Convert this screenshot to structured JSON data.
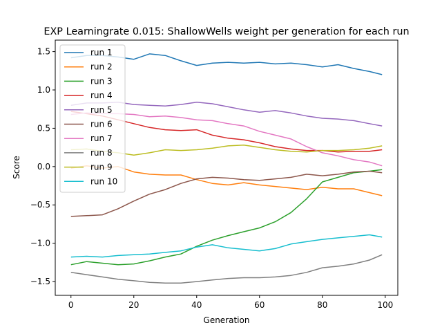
{
  "chart_data": {
    "type": "line",
    "title": "EXP Learningrate 0.015: ShallowWells weight per generation for each run",
    "xlabel": "Generation",
    "ylabel": "Score",
    "xlim": [
      -5,
      104
    ],
    "ylim": [
      -1.68,
      1.65
    ],
    "xticks": [
      0,
      20,
      40,
      60,
      80,
      100
    ],
    "xtick_labels": [
      "0",
      "20",
      "40",
      "60",
      "80",
      "100"
    ],
    "yticks": [
      -1.5,
      -1.0,
      -0.5,
      0.0,
      0.5,
      1.0,
      1.5
    ],
    "ytick_labels": [
      "−1.5",
      "−1.0",
      "−0.5",
      "0.0",
      "0.5",
      "1.0",
      "1.5"
    ],
    "grid": false,
    "legend_position": "top-left",
    "series": [
      {
        "name": "run 1",
        "color": "#1f77b4",
        "x": [
          0,
          5,
          10,
          15,
          20,
          25,
          30,
          35,
          40,
          45,
          50,
          55,
          60,
          65,
          70,
          75,
          80,
          85,
          90,
          95,
          99
        ],
        "y": [
          1.42,
          1.45,
          1.45,
          1.43,
          1.4,
          1.47,
          1.45,
          1.38,
          1.32,
          1.35,
          1.36,
          1.35,
          1.36,
          1.34,
          1.35,
          1.33,
          1.3,
          1.33,
          1.28,
          1.24,
          1.2
        ]
      },
      {
        "name": "run 2",
        "color": "#ff7f0e",
        "x": [
          0,
          5,
          10,
          15,
          20,
          25,
          30,
          35,
          40,
          45,
          50,
          55,
          60,
          65,
          70,
          75,
          80,
          85,
          90,
          95,
          99
        ],
        "y": [
          -0.02,
          0.01,
          -0.02,
          0.0,
          -0.07,
          -0.1,
          -0.11,
          -0.11,
          -0.17,
          -0.22,
          -0.24,
          -0.21,
          -0.24,
          -0.26,
          -0.28,
          -0.3,
          -0.27,
          -0.29,
          -0.29,
          -0.34,
          -0.38
        ]
      },
      {
        "name": "run 3",
        "color": "#2ca02c",
        "x": [
          0,
          5,
          10,
          15,
          20,
          25,
          30,
          35,
          40,
          45,
          50,
          55,
          60,
          65,
          70,
          75,
          80,
          85,
          90,
          95,
          99
        ],
        "y": [
          -1.28,
          -1.24,
          -1.26,
          -1.28,
          -1.27,
          -1.23,
          -1.18,
          -1.14,
          -1.04,
          -0.96,
          -0.9,
          -0.85,
          -0.8,
          -0.72,
          -0.6,
          -0.42,
          -0.2,
          -0.14,
          -0.08,
          -0.06,
          -0.04
        ]
      },
      {
        "name": "run 4",
        "color": "#d62728",
        "x": [
          0,
          5,
          10,
          15,
          20,
          25,
          30,
          35,
          40,
          45,
          50,
          55,
          60,
          65,
          70,
          75,
          80,
          85,
          90,
          95,
          99
        ],
        "y": [
          0.72,
          0.69,
          0.66,
          0.61,
          0.56,
          0.51,
          0.48,
          0.47,
          0.48,
          0.41,
          0.37,
          0.35,
          0.31,
          0.26,
          0.23,
          0.21,
          0.21,
          0.19,
          0.2,
          0.2,
          0.22
        ]
      },
      {
        "name": "run 5",
        "color": "#9467bd",
        "x": [
          0,
          5,
          10,
          15,
          20,
          25,
          30,
          35,
          40,
          45,
          50,
          55,
          60,
          65,
          70,
          75,
          80,
          85,
          90,
          95,
          99
        ],
        "y": [
          0.8,
          0.83,
          0.83,
          0.84,
          0.81,
          0.8,
          0.79,
          0.81,
          0.84,
          0.82,
          0.78,
          0.74,
          0.71,
          0.73,
          0.7,
          0.66,
          0.63,
          0.62,
          0.6,
          0.56,
          0.53
        ]
      },
      {
        "name": "run 6",
        "color": "#8c564b",
        "x": [
          0,
          5,
          10,
          15,
          20,
          25,
          30,
          35,
          40,
          45,
          50,
          55,
          60,
          65,
          70,
          75,
          80,
          85,
          90,
          95,
          99
        ],
        "y": [
          -0.65,
          -0.64,
          -0.63,
          -0.55,
          -0.45,
          -0.36,
          -0.3,
          -0.22,
          -0.16,
          -0.14,
          -0.15,
          -0.17,
          -0.18,
          -0.16,
          -0.14,
          -0.1,
          -0.12,
          -0.1,
          -0.07,
          -0.06,
          -0.08
        ]
      },
      {
        "name": "run 7",
        "color": "#e377c2",
        "x": [
          0,
          5,
          10,
          15,
          20,
          25,
          30,
          35,
          40,
          45,
          50,
          55,
          60,
          65,
          70,
          75,
          80,
          85,
          90,
          95,
          99
        ],
        "y": [
          0.68,
          0.7,
          0.69,
          0.69,
          0.68,
          0.65,
          0.66,
          0.64,
          0.61,
          0.6,
          0.56,
          0.53,
          0.46,
          0.41,
          0.36,
          0.26,
          0.18,
          0.14,
          0.09,
          0.06,
          0.01
        ]
      },
      {
        "name": "run 8",
        "color": "#7f7f7f",
        "x": [
          0,
          5,
          10,
          15,
          20,
          25,
          30,
          35,
          40,
          45,
          50,
          55,
          60,
          65,
          70,
          75,
          80,
          85,
          90,
          95,
          99
        ],
        "y": [
          -1.38,
          -1.41,
          -1.44,
          -1.47,
          -1.49,
          -1.51,
          -1.52,
          -1.52,
          -1.5,
          -1.48,
          -1.46,
          -1.45,
          -1.45,
          -1.44,
          -1.42,
          -1.38,
          -1.32,
          -1.3,
          -1.27,
          -1.22,
          -1.15
        ]
      },
      {
        "name": "run 9",
        "color": "#bcbd22",
        "x": [
          0,
          5,
          10,
          15,
          20,
          25,
          30,
          35,
          40,
          45,
          50,
          55,
          60,
          65,
          70,
          75,
          80,
          85,
          90,
          95,
          99
        ],
        "y": [
          0.22,
          0.23,
          0.2,
          0.18,
          0.15,
          0.18,
          0.22,
          0.21,
          0.22,
          0.24,
          0.27,
          0.28,
          0.25,
          0.22,
          0.2,
          0.19,
          0.21,
          0.21,
          0.22,
          0.24,
          0.27
        ]
      },
      {
        "name": "run 10",
        "color": "#17becf",
        "x": [
          0,
          5,
          10,
          15,
          20,
          25,
          30,
          35,
          40,
          45,
          50,
          55,
          60,
          65,
          70,
          75,
          80,
          85,
          90,
          95,
          99
        ],
        "y": [
          -1.18,
          -1.17,
          -1.18,
          -1.16,
          -1.15,
          -1.14,
          -1.12,
          -1.1,
          -1.05,
          -1.02,
          -1.06,
          -1.08,
          -1.1,
          -1.07,
          -1.01,
          -0.98,
          -0.95,
          -0.93,
          -0.91,
          -0.89,
          -0.92
        ]
      }
    ]
  }
}
